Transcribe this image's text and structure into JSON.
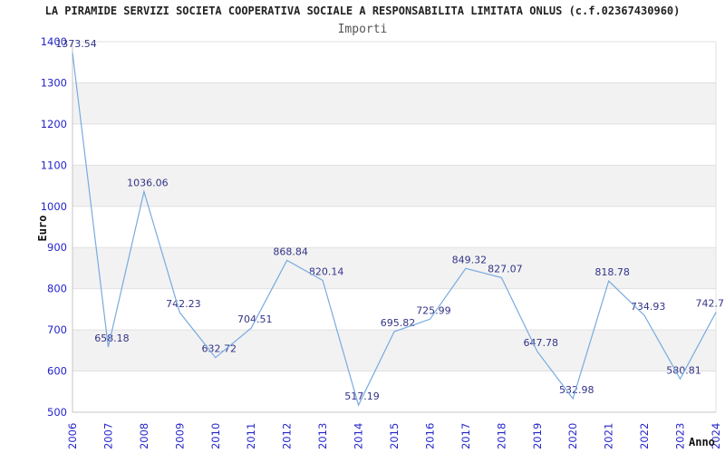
{
  "header": {
    "title": "LA PIRAMIDE SERVIZI SOCIETA COOPERATIVA SOCIALE A RESPONSABILITA LIMITATA ONLUS (c.f.02367430960)",
    "subtitle": "Importi"
  },
  "chart_data": {
    "type": "line",
    "title": "Importi",
    "xlabel": "Anno",
    "ylabel": "Euro",
    "categories": [
      "2006",
      "2007",
      "2008",
      "2009",
      "2010",
      "2011",
      "2012",
      "2013",
      "2014",
      "2015",
      "2016",
      "2017",
      "2018",
      "2019",
      "2020",
      "2021",
      "2022",
      "2023",
      "2024"
    ],
    "series": [
      {
        "name": "Importi",
        "values": [
          1373.54,
          658.18,
          1036.06,
          742.23,
          632.72,
          704.51,
          868.84,
          820.14,
          517.19,
          695.82,
          725.99,
          849.32,
          827.07,
          647.78,
          532.98,
          818.78,
          734.93,
          580.81,
          742.7
        ]
      }
    ],
    "point_labels": [
      "1373.54",
      "658.18",
      "1036.06",
      "742.23",
      "632.72",
      "704.51",
      "868.84",
      "820.14",
      "517.19",
      "695.82",
      "725.99",
      "849.32",
      "827.07",
      "647.78",
      "532.98",
      "818.78",
      "734.93",
      "580.81",
      "742.7"
    ],
    "ylim": [
      500,
      1400
    ],
    "y_tick_step": 100,
    "y_ticks": [
      1400,
      1300,
      1200,
      1100,
      1000,
      900,
      800,
      700,
      600,
      500
    ],
    "grid": "horizontal gridlines with alternating shaded bands",
    "legend": "none"
  },
  "style": {
    "line_color": "#79aae0",
    "tick_label_color": "#2424cc",
    "point_label_color": "#333388",
    "band_color": "#f2f2f2",
    "grid_color": "#e0e0e0",
    "axis_color": "#c6c6c6",
    "title_color": "#222222",
    "subtitle_color": "#555555",
    "axis_title_color": "#111111"
  }
}
